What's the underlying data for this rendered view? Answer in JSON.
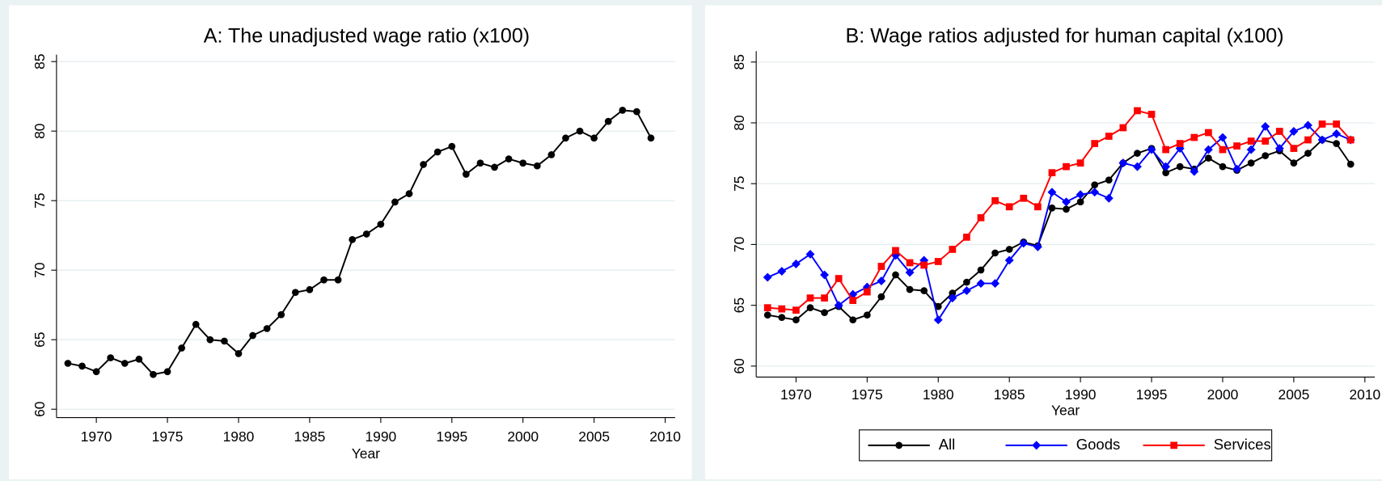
{
  "chart_data": [
    {
      "type": "line",
      "title": "A: The unadjusted wage ratio (x100)",
      "x_label": "Year",
      "x": [
        1968,
        1969,
        1970,
        1971,
        1972,
        1973,
        1974,
        1975,
        1976,
        1977,
        1978,
        1979,
        1980,
        1981,
        1982,
        1983,
        1984,
        1985,
        1986,
        1987,
        1988,
        1989,
        1990,
        1991,
        1992,
        1993,
        1994,
        1995,
        1996,
        1997,
        1998,
        1999,
        2000,
        2001,
        2002,
        2003,
        2004,
        2005,
        2006,
        2007,
        2008,
        2009
      ],
      "values": [
        63.3,
        63.1,
        62.7,
        63.7,
        63.3,
        63.6,
        62.5,
        62.7,
        64.4,
        66.1,
        65.0,
        64.9,
        64.0,
        65.3,
        65.8,
        66.8,
        68.4,
        68.6,
        69.3,
        69.3,
        72.2,
        72.6,
        73.3,
        74.9,
        75.5,
        77.6,
        78.5,
        78.9,
        76.9,
        77.7,
        77.4,
        78.0,
        77.7,
        77.5,
        78.3,
        79.5,
        80.0,
        79.5,
        80.7,
        81.5,
        81.4,
        79.5
      ],
      "color": "#000000",
      "marker": "circle",
      "xlim": [
        1967.2,
        2010.7
      ],
      "xticks": [
        1970,
        1975,
        1980,
        1985,
        1990,
        1995,
        2000,
        2005,
        2010
      ],
      "ylim": [
        59.4,
        85.5
      ],
      "yticks": [
        60,
        65,
        70,
        75,
        80,
        85
      ],
      "grid": true
    },
    {
      "type": "line",
      "title": "B: Wage ratios adjusted for human capital (x100)",
      "x_label": "Year",
      "x": [
        1968,
        1969,
        1970,
        1971,
        1972,
        1973,
        1974,
        1975,
        1976,
        1977,
        1978,
        1979,
        1980,
        1981,
        1982,
        1983,
        1984,
        1985,
        1986,
        1987,
        1988,
        1989,
        1990,
        1991,
        1992,
        1993,
        1994,
        1995,
        1996,
        1997,
        1998,
        1999,
        2000,
        2001,
        2002,
        2003,
        2004,
        2005,
        2006,
        2007,
        2008,
        2009
      ],
      "series": [
        {
          "name": "All",
          "color": "#000000",
          "marker": "circle",
          "values": [
            64.2,
            64.0,
            63.8,
            64.8,
            64.4,
            64.9,
            63.8,
            64.2,
            65.7,
            67.5,
            66.3,
            66.2,
            64.9,
            66.0,
            66.9,
            67.9,
            69.3,
            69.6,
            70.2,
            69.9,
            73.0,
            72.9,
            73.5,
            74.9,
            75.3,
            76.7,
            77.5,
            77.9,
            75.9,
            76.4,
            76.2,
            77.1,
            76.4,
            76.1,
            76.7,
            77.3,
            77.7,
            76.7,
            77.5,
            78.6,
            78.3,
            76.6
          ]
        },
        {
          "name": "Goods",
          "color": "#0000ff",
          "marker": "diamond",
          "values": [
            67.3,
            67.8,
            68.4,
            69.2,
            67.5,
            65.0,
            65.9,
            66.5,
            67.0,
            69.1,
            67.7,
            68.7,
            63.8,
            65.6,
            66.2,
            66.8,
            66.8,
            68.7,
            70.1,
            69.8,
            74.3,
            73.5,
            74.1,
            74.3,
            73.8,
            76.7,
            76.4,
            77.8,
            76.4,
            77.9,
            76.0,
            77.8,
            78.8,
            76.2,
            77.8,
            79.7,
            77.9,
            79.3,
            79.8,
            78.6,
            79.1,
            78.6
          ]
        },
        {
          "name": "Services",
          "color": "#ff0000",
          "marker": "square",
          "values": [
            64.8,
            64.7,
            64.6,
            65.6,
            65.6,
            67.2,
            65.4,
            66.1,
            68.2,
            69.5,
            68.5,
            68.3,
            68.6,
            69.6,
            70.6,
            72.2,
            73.6,
            73.1,
            73.8,
            73.1,
            75.9,
            76.4,
            76.7,
            78.3,
            78.9,
            79.6,
            81.0,
            80.7,
            77.8,
            78.3,
            78.8,
            79.2,
            77.8,
            78.1,
            78.5,
            78.5,
            79.3,
            77.9,
            78.6,
            79.9,
            79.9,
            78.6
          ]
        }
      ],
      "xlim": [
        1967.2,
        2010.7
      ],
      "xticks": [
        1970,
        1975,
        1980,
        1985,
        1990,
        1995,
        2000,
        2005,
        2010
      ],
      "ylim": [
        59.1,
        85.9
      ],
      "yticks": [
        60,
        65,
        70,
        75,
        80,
        85
      ],
      "grid": true,
      "legend": "bottom"
    }
  ]
}
